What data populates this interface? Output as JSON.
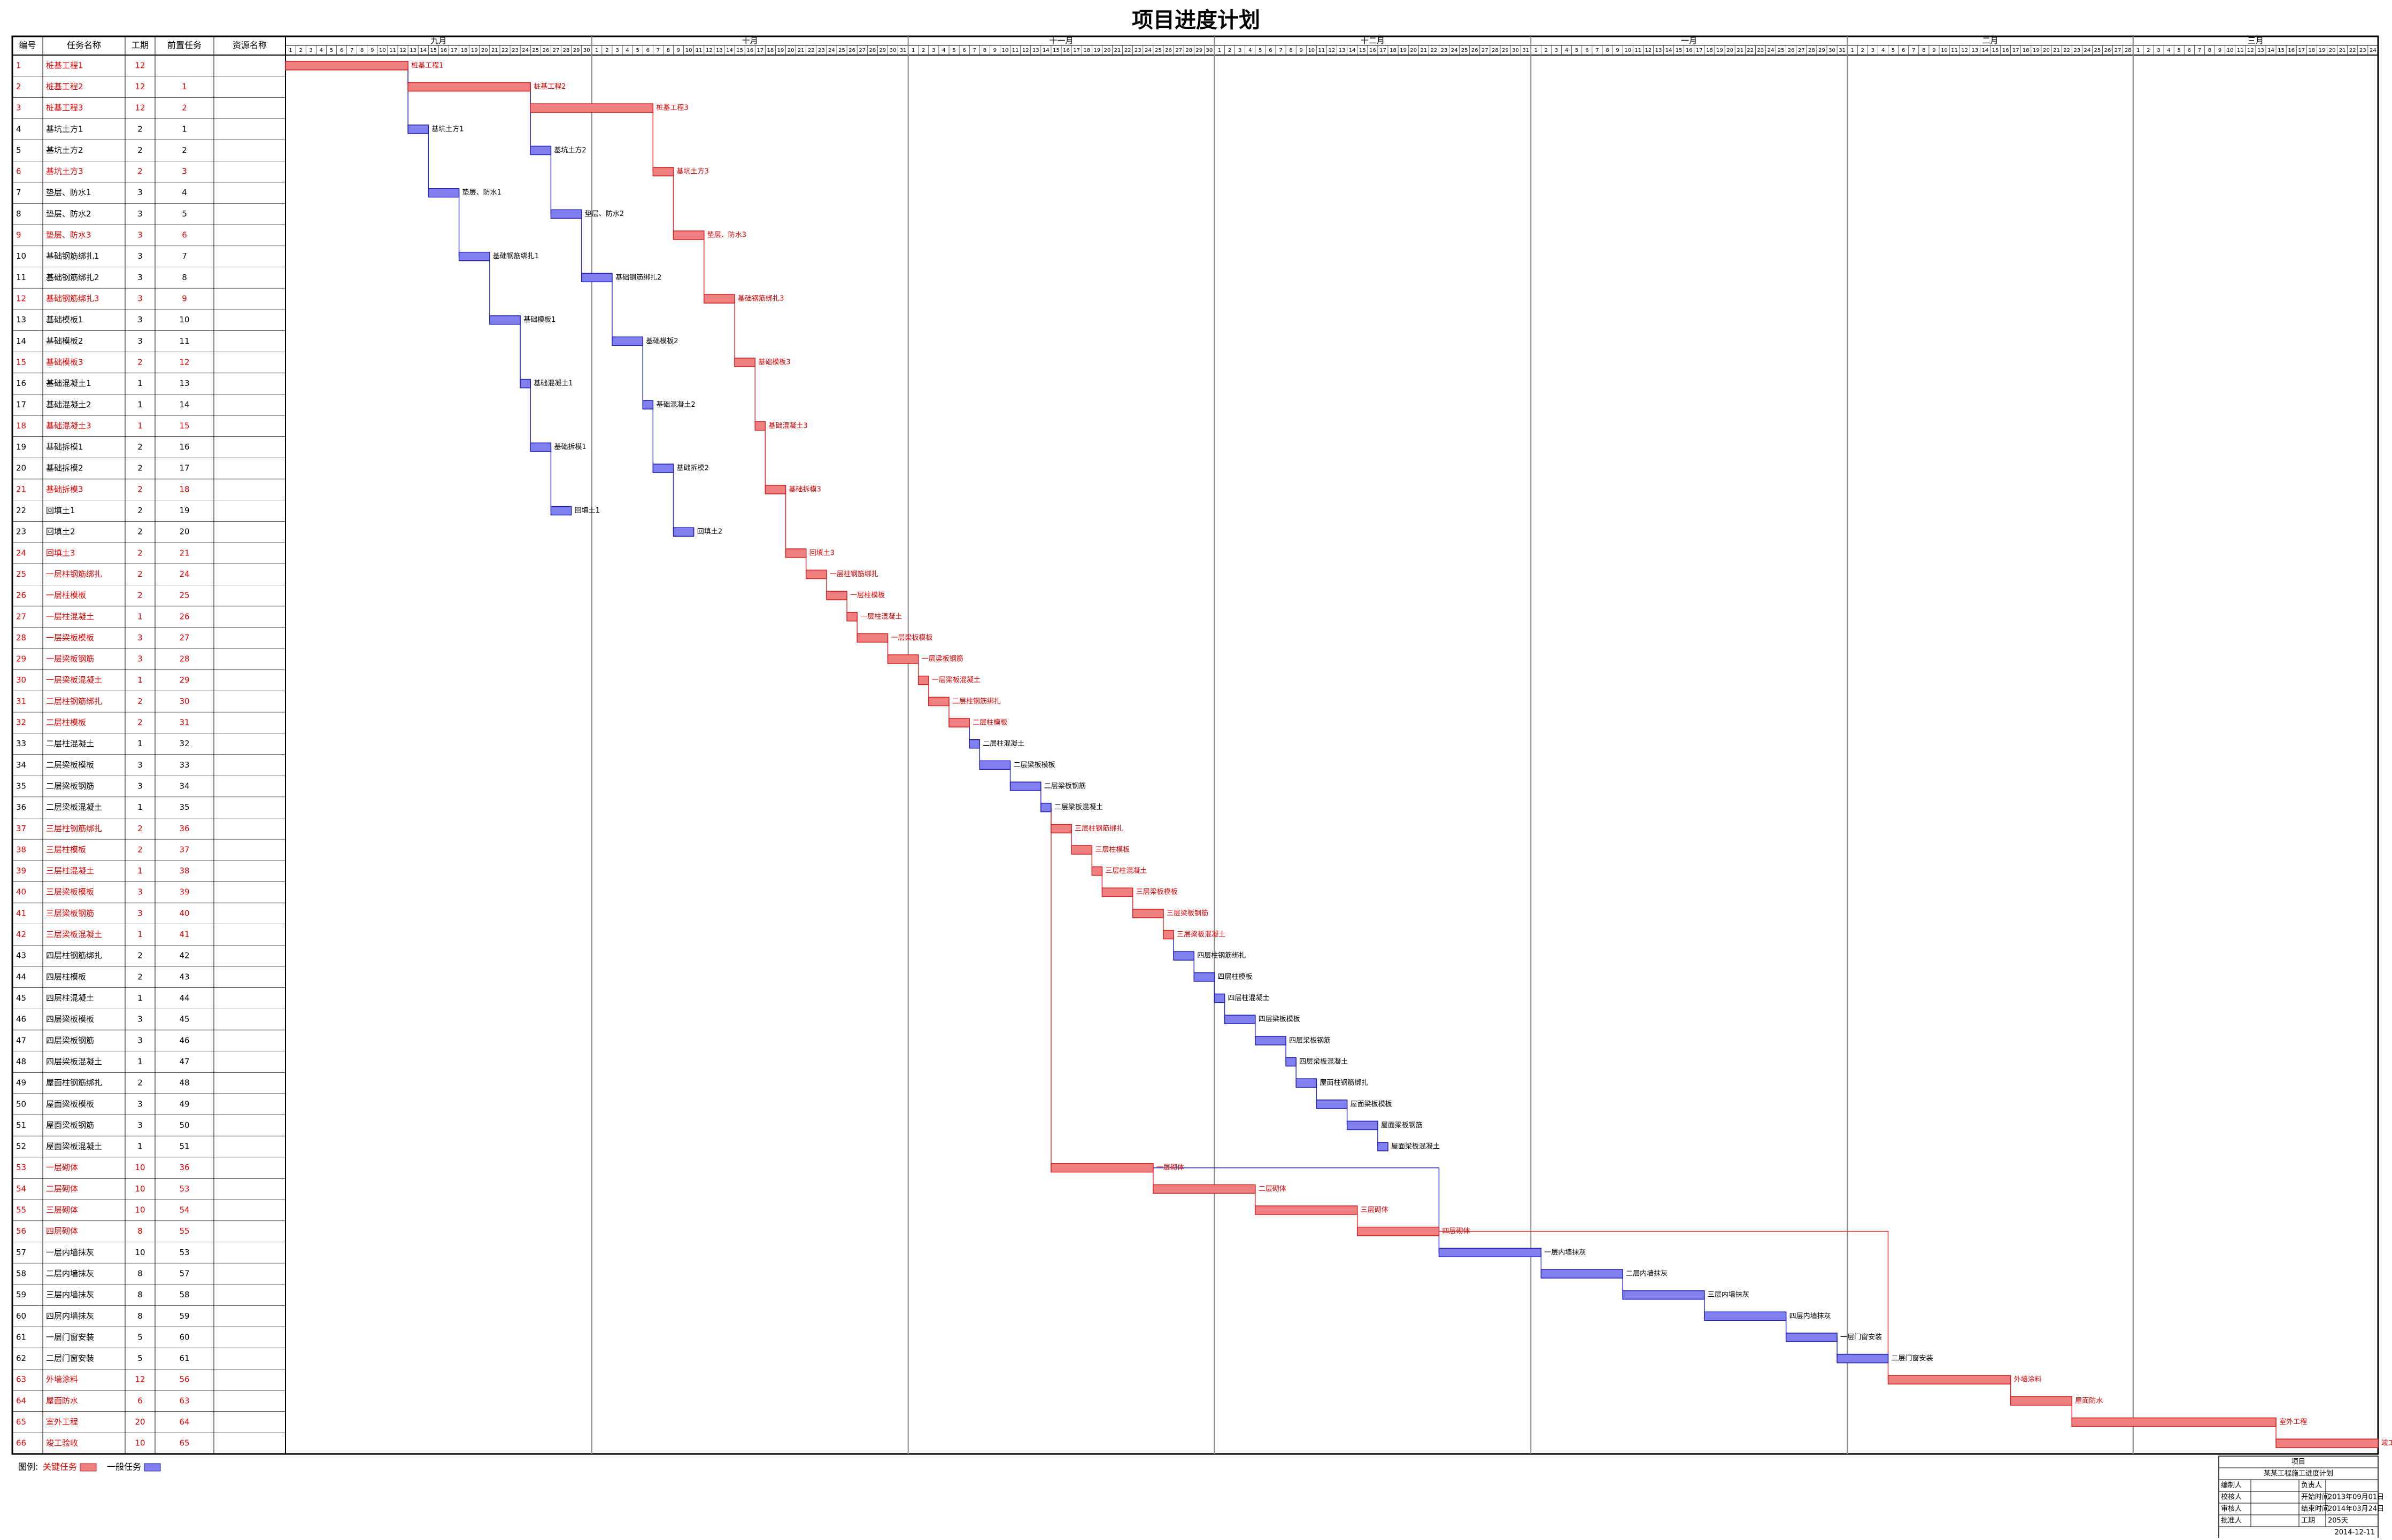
{
  "title": "项目进度计划",
  "table": {
    "headers": [
      "编号",
      "任务名称",
      "工期",
      "前置任务",
      "资源名称"
    ]
  },
  "timeline": {
    "months": [
      {
        "name": "九月",
        "days": [
          1,
          2,
          3,
          4,
          5,
          6,
          7,
          8,
          9,
          10,
          11,
          12,
          13,
          14,
          15,
          16,
          17,
          18,
          19,
          20,
          21,
          22,
          23,
          24,
          25,
          26,
          27,
          28,
          29,
          30
        ]
      },
      {
        "name": "十月",
        "days": [
          1,
          2,
          3,
          4,
          5,
          6,
          7,
          8,
          9,
          10,
          11,
          12,
          13,
          14,
          15,
          16,
          17,
          18,
          19,
          20,
          21,
          22,
          23,
          24,
          25,
          26,
          27,
          28,
          29,
          30,
          31
        ]
      },
      {
        "name": "十一月",
        "days": [
          1,
          2,
          3,
          4,
          5,
          6,
          7,
          8,
          9,
          10,
          11,
          12,
          13,
          14,
          15,
          16,
          17,
          18,
          19,
          20,
          21,
          22,
          23,
          24,
          25,
          26,
          27,
          28,
          29,
          30
        ]
      },
      {
        "name": "十二月",
        "days": [
          1,
          2,
          3,
          4,
          5,
          6,
          7,
          8,
          9,
          10,
          11,
          12,
          13,
          14,
          15,
          16,
          17,
          18,
          19,
          20,
          21,
          22,
          23,
          24,
          25,
          26,
          27,
          28,
          29,
          30,
          31
        ]
      },
      {
        "name": "一月",
        "days": [
          1,
          2,
          3,
          4,
          5,
          6,
          7,
          8,
          9,
          10,
          11,
          12,
          13,
          14,
          15,
          16,
          17,
          18,
          19,
          20,
          21,
          22,
          23,
          24,
          25,
          26,
          27,
          28,
          29,
          30,
          31
        ]
      },
      {
        "name": "二月",
        "days": [
          1,
          2,
          3,
          4,
          5,
          6,
          7,
          8,
          9,
          10,
          11,
          12,
          13,
          14,
          15,
          16,
          17,
          18,
          19,
          20,
          21,
          22,
          23,
          24,
          25,
          26,
          27,
          28
        ]
      },
      {
        "name": "三月",
        "days": [
          1,
          2,
          3,
          4,
          5,
          6,
          7,
          8,
          9,
          10,
          11,
          12,
          13,
          14,
          15,
          16,
          17,
          18,
          19,
          20,
          21,
          22,
          23,
          24
        ]
      }
    ]
  },
  "tasks": [
    {
      "id": 1,
      "name": "桩基工程1",
      "duration": 12,
      "pred": "",
      "start": 0,
      "critical": true
    },
    {
      "id": 2,
      "name": "桩基工程2",
      "duration": 12,
      "pred": "1",
      "start": 12,
      "critical": true
    },
    {
      "id": 3,
      "name": "桩基工程3",
      "duration": 12,
      "pred": "2",
      "start": 24,
      "critical": true
    },
    {
      "id": 4,
      "name": "基坑土方1",
      "duration": 2,
      "pred": "1",
      "start": 12,
      "critical": false
    },
    {
      "id": 5,
      "name": "基坑土方2",
      "duration": 2,
      "pred": "2",
      "start": 24,
      "critical": false
    },
    {
      "id": 6,
      "name": "基坑土方3",
      "duration": 2,
      "pred": "3",
      "start": 36,
      "critical": true
    },
    {
      "id": 7,
      "name": "垫层、防水1",
      "duration": 3,
      "pred": "4",
      "start": 14,
      "critical": false
    },
    {
      "id": 8,
      "name": "垫层、防水2",
      "duration": 3,
      "pred": "5",
      "start": 26,
      "critical": false
    },
    {
      "id": 9,
      "name": "垫层、防水3",
      "duration": 3,
      "pred": "6",
      "start": 38,
      "critical": true
    },
    {
      "id": 10,
      "name": "基础钢筋绑扎1",
      "duration": 3,
      "pred": "7",
      "start": 17,
      "critical": false
    },
    {
      "id": 11,
      "name": "基础钢筋绑扎2",
      "duration": 3,
      "pred": "8",
      "start": 29,
      "critical": false
    },
    {
      "id": 12,
      "name": "基础钢筋绑扎3",
      "duration": 3,
      "pred": "9",
      "start": 41,
      "critical": true
    },
    {
      "id": 13,
      "name": "基础模板1",
      "duration": 3,
      "pred": "10",
      "start": 20,
      "critical": false
    },
    {
      "id": 14,
      "name": "基础模板2",
      "duration": 3,
      "pred": "11",
      "start": 32,
      "critical": false
    },
    {
      "id": 15,
      "name": "基础模板3",
      "duration": 2,
      "pred": "12",
      "start": 44,
      "critical": true
    },
    {
      "id": 16,
      "name": "基础混凝土1",
      "duration": 1,
      "pred": "13",
      "start": 23,
      "critical": false
    },
    {
      "id": 17,
      "name": "基础混凝土2",
      "duration": 1,
      "pred": "14",
      "start": 35,
      "critical": false
    },
    {
      "id": 18,
      "name": "基础混凝土3",
      "duration": 1,
      "pred": "15",
      "start": 46,
      "critical": true
    },
    {
      "id": 19,
      "name": "基础拆模1",
      "duration": 2,
      "pred": "16",
      "start": 24,
      "critical": false
    },
    {
      "id": 20,
      "name": "基础拆模2",
      "duration": 2,
      "pred": "17",
      "start": 36,
      "critical": false
    },
    {
      "id": 21,
      "name": "基础拆模3",
      "duration": 2,
      "pred": "18",
      "start": 47,
      "critical": true
    },
    {
      "id": 22,
      "name": "回填土1",
      "duration": 2,
      "pred": "19",
      "start": 26,
      "critical": false
    },
    {
      "id": 23,
      "name": "回填土2",
      "duration": 2,
      "pred": "20",
      "start": 38,
      "critical": false
    },
    {
      "id": 24,
      "name": "回填土3",
      "duration": 2,
      "pred": "21",
      "start": 49,
      "critical": true
    },
    {
      "id": 25,
      "name": "一层柱钢筋绑扎",
      "duration": 2,
      "pred": "24",
      "start": 51,
      "critical": true
    },
    {
      "id": 26,
      "name": "一层柱模板",
      "duration": 2,
      "pred": "25",
      "start": 53,
      "critical": true
    },
    {
      "id": 27,
      "name": "一层柱混凝土",
      "duration": 1,
      "pred": "26",
      "start": 55,
      "critical": true
    },
    {
      "id": 28,
      "name": "一层梁板模板",
      "duration": 3,
      "pred": "27",
      "start": 56,
      "critical": true
    },
    {
      "id": 29,
      "name": "一层梁板钢筋",
      "duration": 3,
      "pred": "28",
      "start": 59,
      "critical": true
    },
    {
      "id": 30,
      "name": "一层梁板混凝土",
      "duration": 1,
      "pred": "29",
      "start": 62,
      "critical": true
    },
    {
      "id": 31,
      "name": "二层柱钢筋绑扎",
      "duration": 2,
      "pred": "30",
      "start": 63,
      "critical": true
    },
    {
      "id": 32,
      "name": "二层柱模板",
      "duration": 2,
      "pred": "31",
      "start": 65,
      "critical": true
    },
    {
      "id": 33,
      "name": "二层柱混凝土",
      "duration": 1,
      "pred": "32",
      "start": 67,
      "critical": false
    },
    {
      "id": 34,
      "name": "二层梁板模板",
      "duration": 3,
      "pred": "33",
      "start": 68,
      "critical": false
    },
    {
      "id": 35,
      "name": "二层梁板钢筋",
      "duration": 3,
      "pred": "34",
      "start": 71,
      "critical": false
    },
    {
      "id": 36,
      "name": "二层梁板混凝土",
      "duration": 1,
      "pred": "35",
      "start": 74,
      "critical": false
    },
    {
      "id": 37,
      "name": "三层柱钢筋绑扎",
      "duration": 2,
      "pred": "36",
      "start": 75,
      "critical": true
    },
    {
      "id": 38,
      "name": "三层柱模板",
      "duration": 2,
      "pred": "37",
      "start": 77,
      "critical": true
    },
    {
      "id": 39,
      "name": "三层柱混凝土",
      "duration": 1,
      "pred": "38",
      "start": 79,
      "critical": true
    },
    {
      "id": 40,
      "name": "三层梁板模板",
      "duration": 3,
      "pred": "39",
      "start": 80,
      "critical": true
    },
    {
      "id": 41,
      "name": "三层梁板钢筋",
      "duration": 3,
      "pred": "40",
      "start": 83,
      "critical": true
    },
    {
      "id": 42,
      "name": "三层梁板混凝土",
      "duration": 1,
      "pred": "41",
      "start": 86,
      "critical": true
    },
    {
      "id": 43,
      "name": "四层柱钢筋绑扎",
      "duration": 2,
      "pred": "42",
      "start": 87,
      "critical": false
    },
    {
      "id": 44,
      "name": "四层柱模板",
      "duration": 2,
      "pred": "43",
      "start": 89,
      "critical": false
    },
    {
      "id": 45,
      "name": "四层柱混凝土",
      "duration": 1,
      "pred": "44",
      "start": 91,
      "critical": false
    },
    {
      "id": 46,
      "name": "四层梁板模板",
      "duration": 3,
      "pred": "45",
      "start": 92,
      "critical": false
    },
    {
      "id": 47,
      "name": "四层梁板钢筋",
      "duration": 3,
      "pred": "46",
      "start": 95,
      "critical": false
    },
    {
      "id": 48,
      "name": "四层梁板混凝土",
      "duration": 1,
      "pred": "47",
      "start": 98,
      "critical": false
    },
    {
      "id": 49,
      "name": "屋面柱钢筋绑扎",
      "duration": 2,
      "pred": "48",
      "start": 99,
      "critical": false
    },
    {
      "id": 50,
      "name": "屋面梁板模板",
      "duration": 3,
      "pred": "49",
      "start": 101,
      "critical": false
    },
    {
      "id": 51,
      "name": "屋面梁板钢筋",
      "duration": 3,
      "pred": "50",
      "start": 104,
      "critical": false
    },
    {
      "id": 52,
      "name": "屋面梁板混凝土",
      "duration": 1,
      "pred": "51",
      "start": 107,
      "critical": false
    },
    {
      "id": 53,
      "name": "一层砌体",
      "duration": 10,
      "pred": "36",
      "start": 75,
      "critical": true
    },
    {
      "id": 54,
      "name": "二层砌体",
      "duration": 10,
      "pred": "53",
      "start": 85,
      "critical": true
    },
    {
      "id": 55,
      "name": "三层砌体",
      "duration": 10,
      "pred": "54",
      "start": 95,
      "critical": true
    },
    {
      "id": 56,
      "name": "四层砌体",
      "duration": 8,
      "pred": "55",
      "start": 105,
      "critical": true
    },
    {
      "id": 57,
      "name": "一层内墙抹灰",
      "duration": 10,
      "pred": "53",
      "start": 113,
      "critical": false
    },
    {
      "id": 58,
      "name": "二层内墙抹灰",
      "duration": 8,
      "pred": "57",
      "start": 123,
      "critical": false
    },
    {
      "id": 59,
      "name": "三层内墙抹灰",
      "duration": 8,
      "pred": "58",
      "start": 131,
      "critical": false
    },
    {
      "id": 60,
      "name": "四层内墙抹灰",
      "duration": 8,
      "pred": "59",
      "start": 139,
      "critical": false
    },
    {
      "id": 61,
      "name": "一层门窗安装",
      "duration": 5,
      "pred": "60",
      "start": 147,
      "critical": false
    },
    {
      "id": 62,
      "name": "二层门窗安装",
      "duration": 5,
      "pred": "61",
      "start": 152,
      "critical": false
    },
    {
      "id": 63,
      "name": "外墙涂料",
      "duration": 12,
      "pred": "56",
      "start": 157,
      "critical": true
    },
    {
      "id": 64,
      "name": "屋面防水",
      "duration": 6,
      "pred": "63",
      "start": 169,
      "critical": true
    },
    {
      "id": 65,
      "name": "室外工程",
      "duration": 20,
      "pred": "64",
      "start": 175,
      "critical": true
    },
    {
      "id": 66,
      "name": "竣工验收",
      "duration": 10,
      "pred": "65",
      "start": 195,
      "critical": true
    }
  ],
  "legend": {
    "label": "图例:",
    "critical": "关键任务",
    "normal": "一般任务",
    "critical_color": "#f08080",
    "normal_color": "#8080f0"
  },
  "info": {
    "project_label": "项目",
    "project": "某某工程施工进度计划",
    "rows": [
      [
        "编制人",
        "",
        "负责人",
        ""
      ],
      [
        "校核人",
        "",
        "开始时间",
        "2013年09月01日"
      ],
      [
        "审核人",
        "",
        "结束时间",
        "2014年03月24日"
      ],
      [
        "批准人",
        "",
        "工期",
        "205天"
      ]
    ],
    "date": "2014-12-11"
  }
}
